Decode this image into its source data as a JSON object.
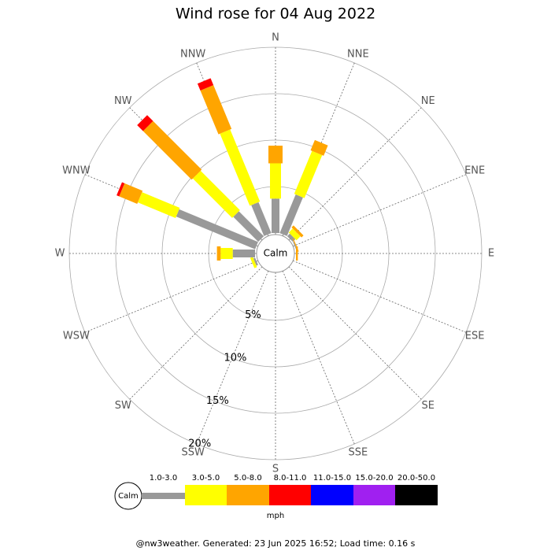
{
  "chart_data": {
    "type": "windrose",
    "title": "Wind rose for 04 Aug 2022",
    "directions": [
      "N",
      "NNE",
      "NE",
      "ENE",
      "E",
      "ESE",
      "SE",
      "SSE",
      "S",
      "SSW",
      "SW",
      "WSW",
      "W",
      "WNW",
      "NW",
      "NNW"
    ],
    "calm_label": "Calm",
    "unit": "mph",
    "rlim": [
      0,
      20
    ],
    "rticks": [
      {
        "value": 5,
        "label": "5%"
      },
      {
        "value": 10,
        "label": "10%"
      },
      {
        "value": 15,
        "label": "15%"
      },
      {
        "value": 20,
        "label": "20%"
      }
    ],
    "series": [
      {
        "name": "1.0-3.0",
        "color": "#999999",
        "values": [
          3.7,
          4.5,
          0.4,
          0.1,
          0,
          0,
          0,
          0,
          0,
          0,
          0,
          0.2,
          2.4,
          9.2,
          3.8,
          3.6
        ]
      },
      {
        "name": "3.0-5.0",
        "color": "#ffff00",
        "values": [
          3.8,
          5.0,
          0.6,
          0,
          0,
          0,
          0,
          0,
          0,
          0,
          0,
          0.3,
          1.3,
          4.4,
          6.0,
          8.4
        ]
      },
      {
        "name": "5.0-8.0",
        "color": "#ffa500",
        "values": [
          1.9,
          1.2,
          0.3,
          0.1,
          0.2,
          0,
          0,
          0,
          0,
          0,
          0,
          0,
          0.4,
          2.1,
          7.4,
          5.1
        ]
      },
      {
        "name": "8.0-11.0",
        "color": "#ff0000",
        "values": [
          0,
          0,
          0,
          0,
          0,
          0,
          0,
          0,
          0,
          0,
          0,
          0,
          0,
          0.3,
          0.9,
          0.8
        ]
      },
      {
        "name": "11.0-15.0",
        "color": "#0000ff",
        "values": [
          0,
          0,
          0,
          0,
          0,
          0,
          0,
          0,
          0,
          0,
          0,
          0,
          0,
          0,
          0,
          0
        ]
      },
      {
        "name": "15.0-20.0",
        "color": "#a020f0",
        "values": [
          0,
          0,
          0,
          0,
          0,
          0,
          0,
          0,
          0,
          0,
          0,
          0,
          0,
          0,
          0,
          0
        ]
      },
      {
        "name": "20.0-50.0",
        "color": "#000000",
        "values": [
          0,
          0,
          0,
          0,
          0,
          0,
          0,
          0,
          0,
          0,
          0,
          0,
          0,
          0,
          0,
          0
        ]
      }
    ],
    "footer": "@nw3weather. Generated: 23 Jun 2025 16:52; Load time: 0.16 s"
  }
}
